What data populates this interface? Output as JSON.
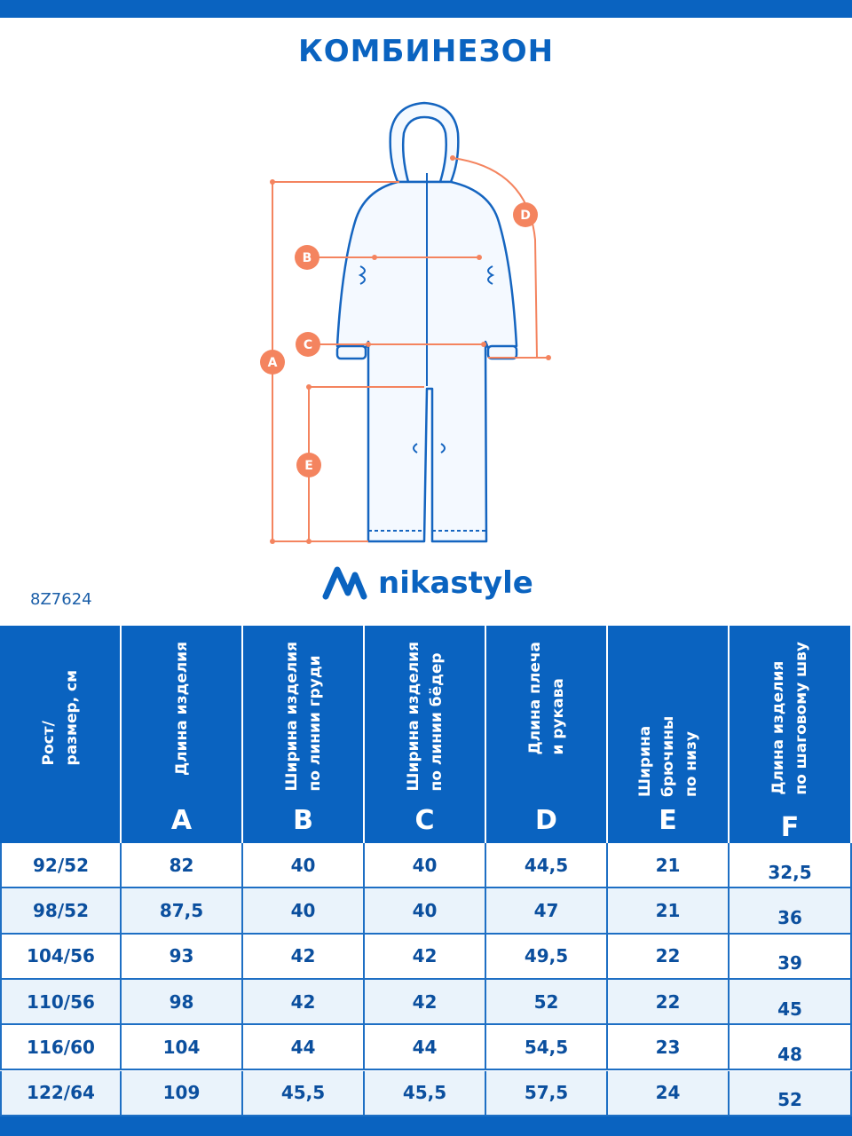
{
  "header": {
    "title": "КОМБИНЕЗОН"
  },
  "diagram": {
    "labels": [
      "A",
      "B",
      "C",
      "D",
      "E"
    ]
  },
  "logo": {
    "text": "nikastyle"
  },
  "article": "8Z7624",
  "table": {
    "columns": [
      {
        "lines": [
          "Рост/",
          "размер, см"
        ]
      },
      {
        "lines": [
          "Длина изделия"
        ],
        "letter": "A"
      },
      {
        "lines": [
          "Ширина изделия",
          "по линии груди"
        ],
        "letter": "B"
      },
      {
        "lines": [
          "Ширина изделия",
          "по линии бёдер"
        ],
        "letter": "C"
      },
      {
        "lines": [
          "Длина плеча",
          "и рукава"
        ],
        "letter": "D"
      },
      {
        "lines": [
          "Ширина брючины",
          "по низу"
        ],
        "letter": "E"
      },
      {
        "lines": [
          "Длина изделия",
          "по шаговому шву"
        ],
        "letter": "F"
      }
    ],
    "rows": [
      [
        "92/52",
        "82",
        "40",
        "40",
        "44,5",
        "21",
        "32,5"
      ],
      [
        "98/52",
        "87,5",
        "40",
        "40",
        "47",
        "21",
        "36"
      ],
      [
        "104/56",
        "93",
        "42",
        "42",
        "49,5",
        "22",
        "39"
      ],
      [
        "110/56",
        "98",
        "42",
        "42",
        "52",
        "22",
        "45"
      ],
      [
        "116/60",
        "104",
        "44",
        "44",
        "54,5",
        "23",
        "48"
      ],
      [
        "122/64",
        "109",
        "45,5",
        "45,5",
        "57,5",
        "24",
        "52"
      ]
    ]
  }
}
